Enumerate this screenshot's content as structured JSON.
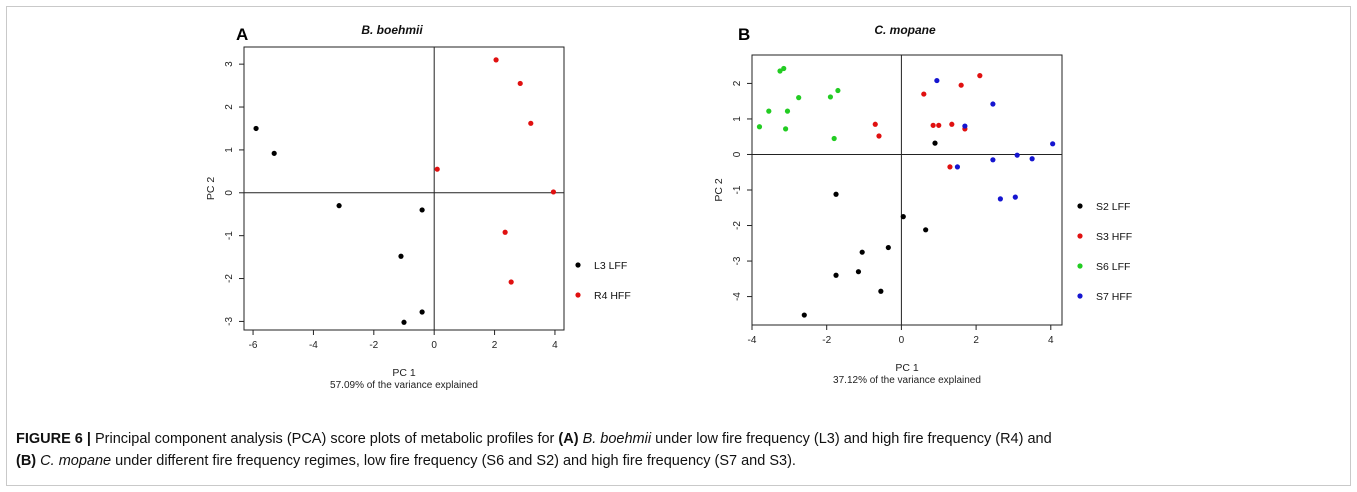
{
  "chart_data": [
    {
      "type": "scatter",
      "panel_label": "A",
      "title": "B. boehmii",
      "xlabel": "PC 1",
      "xlabel_sub": "57.09% of the variance explained",
      "ylabel": "PC 2",
      "xlim": [
        -6.3,
        4.3
      ],
      "ylim": [
        -3.2,
        3.4
      ],
      "xticks": [
        -6,
        -4,
        -2,
        0,
        2,
        4
      ],
      "yticks": [
        -3,
        -2,
        -1,
        0,
        1,
        2,
        3
      ],
      "grid": false,
      "zero_lines": true,
      "legend_position": "right",
      "series": [
        {
          "name": "L3 LFF",
          "color": "#000000",
          "points": [
            [
              -5.9,
              1.5
            ],
            [
              -5.3,
              0.92
            ],
            [
              -3.15,
              -0.3
            ],
            [
              -0.4,
              -0.4
            ],
            [
              -1.1,
              -1.48
            ],
            [
              -0.4,
              -2.78
            ],
            [
              -1.0,
              -3.02
            ]
          ]
        },
        {
          "name": "R4 HFF",
          "color": "#e01010",
          "points": [
            [
              2.05,
              3.1
            ],
            [
              2.85,
              2.55
            ],
            [
              3.2,
              1.62
            ],
            [
              0.1,
              0.55
            ],
            [
              3.95,
              0.02
            ],
            [
              2.35,
              -0.92
            ],
            [
              2.55,
              -2.08
            ]
          ]
        }
      ]
    },
    {
      "type": "scatter",
      "panel_label": "B",
      "title": "C. mopane",
      "xlabel": "PC 1",
      "xlabel_sub": "37.12% of the variance explained",
      "ylabel": "PC 2",
      "xlim": [
        -4.0,
        4.3
      ],
      "ylim": [
        -4.8,
        2.8
      ],
      "xticks": [
        -4,
        -2,
        0,
        2,
        4
      ],
      "yticks": [
        -4,
        -3,
        -2,
        -1,
        0,
        1,
        2
      ],
      "grid": false,
      "zero_lines": true,
      "legend_position": "right",
      "series": [
        {
          "name": "S2 LFF",
          "color": "#000000",
          "points": [
            [
              0.9,
              0.32
            ],
            [
              -1.75,
              -1.12
            ],
            [
              0.05,
              -1.75
            ],
            [
              0.65,
              -2.12
            ],
            [
              -1.05,
              -2.75
            ],
            [
              -0.35,
              -2.62
            ],
            [
              -1.75,
              -3.4
            ],
            [
              -1.15,
              -3.3
            ],
            [
              -0.55,
              -3.85
            ],
            [
              -2.6,
              -4.52
            ]
          ]
        },
        {
          "name": "S3 HFF",
          "color": "#e01010",
          "points": [
            [
              2.1,
              2.22
            ],
            [
              1.6,
              1.95
            ],
            [
              0.6,
              1.7
            ],
            [
              -0.7,
              0.85
            ],
            [
              -0.6,
              0.52
            ],
            [
              0.85,
              0.82
            ],
            [
              1.0,
              0.82
            ],
            [
              1.35,
              0.85
            ],
            [
              1.7,
              0.72
            ],
            [
              1.3,
              -0.35
            ]
          ]
        },
        {
          "name": "S6 LFF",
          "color": "#22cc22",
          "points": [
            [
              -3.25,
              2.35
            ],
            [
              -3.15,
              2.42
            ],
            [
              -3.55,
              1.22
            ],
            [
              -3.05,
              1.22
            ],
            [
              -2.75,
              1.6
            ],
            [
              -1.9,
              1.62
            ],
            [
              -1.7,
              1.8
            ],
            [
              -3.8,
              0.78
            ],
            [
              -3.1,
              0.72
            ],
            [
              -1.8,
              0.45
            ]
          ]
        },
        {
          "name": "S7 HFF",
          "color": "#1515d0",
          "points": [
            [
              0.95,
              2.08
            ],
            [
              2.45,
              1.42
            ],
            [
              1.7,
              0.8
            ],
            [
              4.05,
              0.3
            ],
            [
              2.45,
              -0.15
            ],
            [
              3.1,
              -0.02
            ],
            [
              3.5,
              -0.12
            ],
            [
              1.5,
              -0.35
            ],
            [
              2.65,
              -1.25
            ],
            [
              3.05,
              -1.2
            ]
          ]
        }
      ]
    }
  ],
  "caption": {
    "label": "FIGURE 6 |",
    "p1": " Principal component analysis (PCA) score plots of metabolic profiles for ",
    "a": "(A)",
    "sp1": "B. boehmii",
    "p2": " under low fire frequency (L3) and high fire frequency (R4) and",
    "b": "(B)",
    "sp2": "C. mopane",
    "p3": " under different fire frequency regimes, low fire frequency (S6 and S2) and high fire frequency (S7 and S3)."
  }
}
